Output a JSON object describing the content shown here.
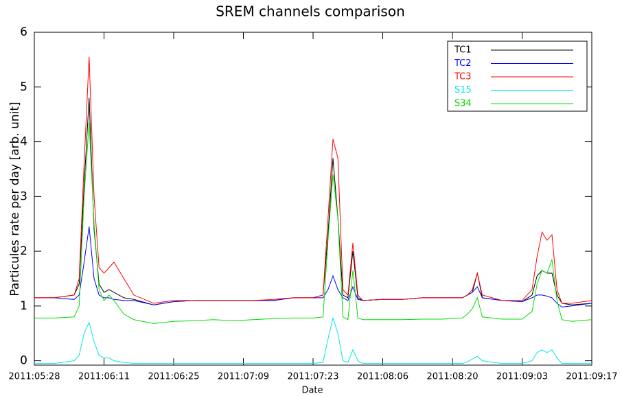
{
  "chart_data": {
    "type": "line",
    "title": "SREM channels comparison",
    "xlabel": "Date",
    "ylabel": "Particules rate per day [arb. unit]",
    "x": [
      "2011:05:28",
      "2011:06:01",
      "2011:06:05",
      "2011:06:06",
      "2011:06:07",
      "2011:06:08",
      "2011:06:09",
      "2011:06:10",
      "2011:06:11",
      "2011:06:12",
      "2011:06:13",
      "2011:06:15",
      "2011:06:17",
      "2011:06:21",
      "2011:06:25",
      "2011:06:29",
      "2011:07:03",
      "2011:07:07",
      "2011:07:11",
      "2011:07:15",
      "2011:07:19",
      "2011:07:23",
      "2011:07:25",
      "2011:07:26",
      "2011:07:27",
      "2011:07:28",
      "2011:07:29",
      "2011:07:30",
      "2011:07:31",
      "2011:08:01",
      "2011:08:02",
      "2011:08:06",
      "2011:08:10",
      "2011:08:14",
      "2011:08:18",
      "2011:08:22",
      "2011:08:23",
      "2011:08:24",
      "2011:08:25",
      "2011:08:26",
      "2011:08:30",
      "2011:09:03",
      "2011:09:05",
      "2011:09:06",
      "2011:09:07",
      "2011:09:08",
      "2011:09:09",
      "2011:09:10",
      "2011:09:11",
      "2011:09:13",
      "2011:09:17"
    ],
    "series": [
      {
        "name": "TC1",
        "color": "#000000",
        "values": [
          1.15,
          1.15,
          1.2,
          1.4,
          3.2,
          4.8,
          2.4,
          1.4,
          1.25,
          1.3,
          1.25,
          1.15,
          1.12,
          1.02,
          1.08,
          1.1,
          1.1,
          1.1,
          1.1,
          1.1,
          1.15,
          1.15,
          1.2,
          2.3,
          3.7,
          2.6,
          1.2,
          1.15,
          2.0,
          1.15,
          1.1,
          1.12,
          1.12,
          1.15,
          1.15,
          1.15,
          1.2,
          1.25,
          1.6,
          1.15,
          1.1,
          1.08,
          1.2,
          1.55,
          1.65,
          1.6,
          1.6,
          1.2,
          1.05,
          1.02,
          1.05
        ]
      },
      {
        "name": "TC2",
        "color": "#0000ff",
        "values": [
          1.15,
          1.15,
          1.12,
          1.2,
          1.8,
          2.45,
          1.5,
          1.2,
          1.15,
          1.15,
          1.12,
          1.1,
          1.1,
          1.02,
          1.08,
          1.1,
          1.1,
          1.1,
          1.1,
          1.1,
          1.15,
          1.15,
          1.15,
          1.3,
          1.55,
          1.3,
          1.15,
          1.1,
          1.35,
          1.12,
          1.1,
          1.12,
          1.12,
          1.15,
          1.15,
          1.15,
          1.2,
          1.25,
          1.35,
          1.15,
          1.1,
          1.08,
          1.15,
          1.2,
          1.2,
          1.18,
          1.15,
          1.05,
          0.98,
          1.0,
          1.05
        ]
      },
      {
        "name": "TC3",
        "color": "#ff0000",
        "values": [
          1.15,
          1.15,
          1.2,
          1.5,
          3.6,
          5.55,
          3.0,
          1.7,
          1.6,
          1.7,
          1.8,
          1.5,
          1.2,
          1.05,
          1.1,
          1.1,
          1.1,
          1.1,
          1.1,
          1.12,
          1.15,
          1.15,
          1.2,
          2.6,
          4.05,
          3.7,
          1.3,
          1.2,
          2.15,
          1.2,
          1.1,
          1.12,
          1.12,
          1.15,
          1.15,
          1.15,
          1.2,
          1.3,
          1.6,
          1.2,
          1.1,
          1.1,
          1.3,
          1.9,
          2.35,
          2.2,
          2.3,
          1.3,
          1.05,
          1.05,
          1.1
        ]
      },
      {
        "name": "S15",
        "color": "#00e5e5",
        "values": [
          -0.05,
          -0.05,
          0.0,
          0.1,
          0.5,
          0.7,
          0.35,
          0.1,
          0.05,
          0.05,
          0.0,
          -0.03,
          -0.05,
          -0.05,
          -0.05,
          -0.05,
          -0.05,
          -0.05,
          -0.05,
          -0.05,
          -0.05,
          -0.05,
          -0.03,
          0.4,
          0.78,
          0.5,
          0.0,
          -0.03,
          0.2,
          0.0,
          -0.05,
          -0.05,
          -0.05,
          -0.05,
          -0.05,
          -0.05,
          -0.02,
          0.03,
          0.08,
          0.0,
          -0.05,
          -0.05,
          0.0,
          0.15,
          0.2,
          0.15,
          0.2,
          0.05,
          -0.05,
          -0.05,
          -0.05
        ]
      },
      {
        "name": "S34",
        "color": "#00dd00",
        "values": [
          0.78,
          0.78,
          0.8,
          1.0,
          3.0,
          4.35,
          2.5,
          1.3,
          1.1,
          1.2,
          1.1,
          0.85,
          0.75,
          0.68,
          0.72,
          0.73,
          0.75,
          0.73,
          0.75,
          0.77,
          0.78,
          0.78,
          0.8,
          2.2,
          3.4,
          2.6,
          0.8,
          0.75,
          1.65,
          0.78,
          0.75,
          0.75,
          0.75,
          0.76,
          0.76,
          0.78,
          0.85,
          0.95,
          1.15,
          0.8,
          0.76,
          0.76,
          0.9,
          1.4,
          1.65,
          1.6,
          1.85,
          1.1,
          0.75,
          0.72,
          0.75
        ]
      }
    ],
    "xlim": [
      "2011:05:28",
      "2011:09:17"
    ],
    "xticks": [
      "2011:05:28",
      "2011:06:11",
      "2011:06:25",
      "2011:07:09",
      "2011:07:23",
      "2011:08:06",
      "2011:08:20",
      "2011:09:03",
      "2011:09:17"
    ],
    "ylim": [
      -0.08,
      6
    ],
    "yticks": [
      0,
      1,
      2,
      3,
      4,
      5,
      6
    ],
    "legend": "top-right"
  }
}
